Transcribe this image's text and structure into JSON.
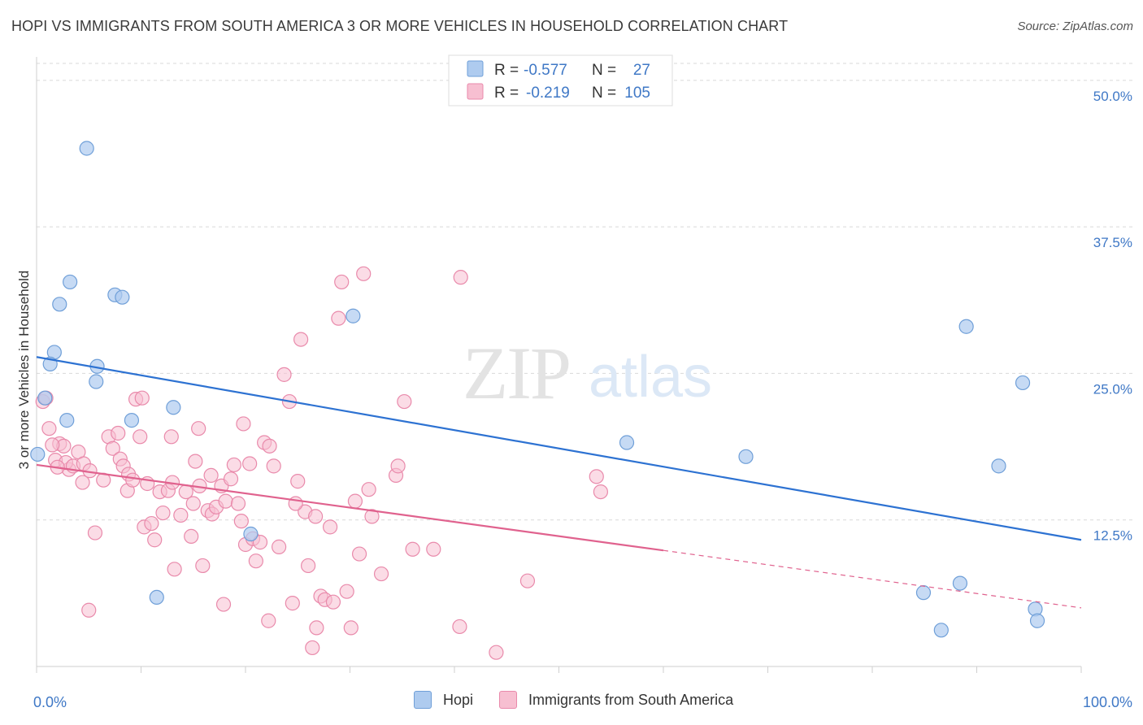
{
  "title": "HOPI VS IMMIGRANTS FROM SOUTH AMERICA 3 OR MORE VEHICLES IN HOUSEHOLD CORRELATION CHART",
  "source": "Source: ZipAtlas.com",
  "watermark": {
    "zip": "ZIP",
    "atlas": "atlas"
  },
  "colors": {
    "hopi_fill": "#aecbef",
    "hopi_stroke": "#6f9fd8",
    "hopi_line": "#2d72d2",
    "imm_fill": "#f7bfd1",
    "imm_stroke": "#e98aab",
    "imm_line": "#e0628e",
    "tick_label": "#3f78c6",
    "grid": "#d9d9d9"
  },
  "legend": {
    "rows": [
      {
        "r_label": "R =",
        "r_value": "-0.577",
        "n_label": "N =",
        "n_value": "27"
      },
      {
        "r_label": "R =",
        "r_value": "-0.219",
        "n_label": "N =",
        "n_value": "105"
      }
    ]
  },
  "chart_data": {
    "type": "scatter",
    "title": "HOPI VS IMMIGRANTS FROM SOUTH AMERICA 3 OR MORE VEHICLES IN HOUSEHOLD CORRELATION CHART",
    "xlabel": "",
    "ylabel": "3 or more Vehicles in Household",
    "xlim": [
      0,
      100
    ],
    "ylim": [
      0,
      52
    ],
    "x_tick_labels": [
      {
        "value": 0,
        "label": "0.0%"
      },
      {
        "value": 100,
        "label": "100.0%"
      }
    ],
    "y_ticks": [
      {
        "value": 12.5,
        "label": "12.5%"
      },
      {
        "value": 25.0,
        "label": "25.0%"
      },
      {
        "value": 37.5,
        "label": "37.5%"
      },
      {
        "value": 50.0,
        "label": "50.0%"
      }
    ],
    "grid": true,
    "legend_position": "top-center",
    "series": [
      {
        "name": "Hopi",
        "r": -0.577,
        "n": 27,
        "trend": {
          "x0": 0,
          "y0": 26.4,
          "x1": 100,
          "y1": 10.8
        },
        "points": [
          {
            "x": 4.8,
            "y": 44.2
          },
          {
            "x": 3.2,
            "y": 32.8
          },
          {
            "x": 2.2,
            "y": 30.9
          },
          {
            "x": 7.5,
            "y": 31.7
          },
          {
            "x": 8.2,
            "y": 31.5
          },
          {
            "x": 1.7,
            "y": 26.8
          },
          {
            "x": 1.3,
            "y": 25.8
          },
          {
            "x": 5.8,
            "y": 25.6
          },
          {
            "x": 5.7,
            "y": 24.3
          },
          {
            "x": 0.8,
            "y": 22.9
          },
          {
            "x": 2.9,
            "y": 21.0
          },
          {
            "x": 9.1,
            "y": 21.0
          },
          {
            "x": 13.1,
            "y": 22.1
          },
          {
            "x": 0.1,
            "y": 18.1
          },
          {
            "x": 30.3,
            "y": 29.9
          },
          {
            "x": 20.5,
            "y": 11.3
          },
          {
            "x": 11.5,
            "y": 5.9
          },
          {
            "x": 56.5,
            "y": 19.1
          },
          {
            "x": 67.9,
            "y": 17.9
          },
          {
            "x": 89.0,
            "y": 29.0
          },
          {
            "x": 94.4,
            "y": 24.2
          },
          {
            "x": 92.1,
            "y": 17.1
          },
          {
            "x": 84.9,
            "y": 6.3
          },
          {
            "x": 88.4,
            "y": 7.1
          },
          {
            "x": 86.6,
            "y": 3.1
          },
          {
            "x": 95.6,
            "y": 4.9
          },
          {
            "x": 95.8,
            "y": 3.9
          }
        ]
      },
      {
        "name": "Immigrants from South America",
        "r": -0.219,
        "n": 105,
        "trend": {
          "x0": 0,
          "y0": 17.2,
          "x1": 60,
          "y1": 9.9
        },
        "trend_dashed": {
          "x0": 60,
          "y0": 9.9,
          "x1": 100,
          "y1": 5.0
        },
        "points": [
          {
            "x": 0.6,
            "y": 22.6
          },
          {
            "x": 0.9,
            "y": 22.9
          },
          {
            "x": 1.2,
            "y": 20.3
          },
          {
            "x": 1.8,
            "y": 17.6
          },
          {
            "x": 2.2,
            "y": 19.0
          },
          {
            "x": 2.6,
            "y": 18.8
          },
          {
            "x": 3.1,
            "y": 16.8
          },
          {
            "x": 2.8,
            "y": 17.4
          },
          {
            "x": 3.5,
            "y": 17.1
          },
          {
            "x": 4.0,
            "y": 18.3
          },
          {
            "x": 4.5,
            "y": 17.3
          },
          {
            "x": 4.4,
            "y": 15.7
          },
          {
            "x": 5.1,
            "y": 16.7
          },
          {
            "x": 5.6,
            "y": 11.4
          },
          {
            "x": 6.4,
            "y": 15.9
          },
          {
            "x": 6.9,
            "y": 19.6
          },
          {
            "x": 7.3,
            "y": 18.6
          },
          {
            "x": 7.8,
            "y": 19.9
          },
          {
            "x": 8.0,
            "y": 17.7
          },
          {
            "x": 8.3,
            "y": 17.1
          },
          {
            "x": 8.8,
            "y": 16.4
          },
          {
            "x": 8.7,
            "y": 15.0
          },
          {
            "x": 9.2,
            "y": 15.9
          },
          {
            "x": 9.5,
            "y": 22.8
          },
          {
            "x": 10.1,
            "y": 22.9
          },
          {
            "x": 10.6,
            "y": 15.6
          },
          {
            "x": 10.3,
            "y": 11.9
          },
          {
            "x": 11.0,
            "y": 12.2
          },
          {
            "x": 11.3,
            "y": 10.8
          },
          {
            "x": 11.8,
            "y": 14.9
          },
          {
            "x": 12.1,
            "y": 13.1
          },
          {
            "x": 12.6,
            "y": 15.0
          },
          {
            "x": 13.0,
            "y": 15.7
          },
          {
            "x": 13.2,
            "y": 8.3
          },
          {
            "x": 13.8,
            "y": 12.9
          },
          {
            "x": 14.3,
            "y": 14.9
          },
          {
            "x": 14.8,
            "y": 11.1
          },
          {
            "x": 15.2,
            "y": 17.5
          },
          {
            "x": 15.0,
            "y": 13.9
          },
          {
            "x": 15.6,
            "y": 15.4
          },
          {
            "x": 15.9,
            "y": 8.6
          },
          {
            "x": 16.4,
            "y": 13.3
          },
          {
            "x": 16.8,
            "y": 13.0
          },
          {
            "x": 17.2,
            "y": 13.6
          },
          {
            "x": 17.7,
            "y": 15.4
          },
          {
            "x": 18.1,
            "y": 14.1
          },
          {
            "x": 18.6,
            "y": 16.0
          },
          {
            "x": 18.9,
            "y": 17.2
          },
          {
            "x": 19.3,
            "y": 13.9
          },
          {
            "x": 19.8,
            "y": 20.7
          },
          {
            "x": 20.0,
            "y": 10.4
          },
          {
            "x": 20.7,
            "y": 10.9
          },
          {
            "x": 21.0,
            "y": 9.0
          },
          {
            "x": 21.4,
            "y": 10.6
          },
          {
            "x": 21.8,
            "y": 19.1
          },
          {
            "x": 22.3,
            "y": 18.8
          },
          {
            "x": 22.7,
            "y": 17.1
          },
          {
            "x": 23.2,
            "y": 10.2
          },
          {
            "x": 23.7,
            "y": 24.9
          },
          {
            "x": 24.2,
            "y": 22.6
          },
          {
            "x": 24.5,
            "y": 5.4
          },
          {
            "x": 25.0,
            "y": 15.8
          },
          {
            "x": 25.3,
            "y": 27.9
          },
          {
            "x": 25.7,
            "y": 13.2
          },
          {
            "x": 26.0,
            "y": 8.6
          },
          {
            "x": 26.4,
            "y": 1.6
          },
          {
            "x": 26.8,
            "y": 3.3
          },
          {
            "x": 27.2,
            "y": 6.0
          },
          {
            "x": 27.6,
            "y": 5.7
          },
          {
            "x": 28.1,
            "y": 11.9
          },
          {
            "x": 28.9,
            "y": 29.7
          },
          {
            "x": 29.2,
            "y": 32.8
          },
          {
            "x": 29.7,
            "y": 6.4
          },
          {
            "x": 30.1,
            "y": 3.3
          },
          {
            "x": 30.5,
            "y": 14.1
          },
          {
            "x": 30.9,
            "y": 9.6
          },
          {
            "x": 31.3,
            "y": 33.5
          },
          {
            "x": 31.8,
            "y": 15.1
          },
          {
            "x": 33.0,
            "y": 7.9
          },
          {
            "x": 34.4,
            "y": 16.3
          },
          {
            "x": 34.6,
            "y": 17.1
          },
          {
            "x": 35.2,
            "y": 22.6
          },
          {
            "x": 36.0,
            "y": 10.0
          },
          {
            "x": 38.0,
            "y": 10.0
          },
          {
            "x": 40.5,
            "y": 3.4
          },
          {
            "x": 40.6,
            "y": 33.2
          },
          {
            "x": 44.0,
            "y": 1.2
          },
          {
            "x": 47.0,
            "y": 7.3
          },
          {
            "x": 53.6,
            "y": 16.2
          },
          {
            "x": 54.0,
            "y": 14.9
          },
          {
            "x": 5.0,
            "y": 4.8
          },
          {
            "x": 2.0,
            "y": 17.0
          },
          {
            "x": 1.5,
            "y": 18.9
          },
          {
            "x": 9.9,
            "y": 19.6
          },
          {
            "x": 12.9,
            "y": 19.6
          },
          {
            "x": 15.5,
            "y": 20.3
          },
          {
            "x": 16.7,
            "y": 16.3
          },
          {
            "x": 17.9,
            "y": 5.3
          },
          {
            "x": 19.6,
            "y": 12.4
          },
          {
            "x": 20.4,
            "y": 17.3
          },
          {
            "x": 24.8,
            "y": 13.9
          },
          {
            "x": 26.7,
            "y": 12.8
          },
          {
            "x": 22.2,
            "y": 3.9
          },
          {
            "x": 28.4,
            "y": 5.5
          },
          {
            "x": 32.1,
            "y": 12.8
          }
        ]
      }
    ]
  }
}
